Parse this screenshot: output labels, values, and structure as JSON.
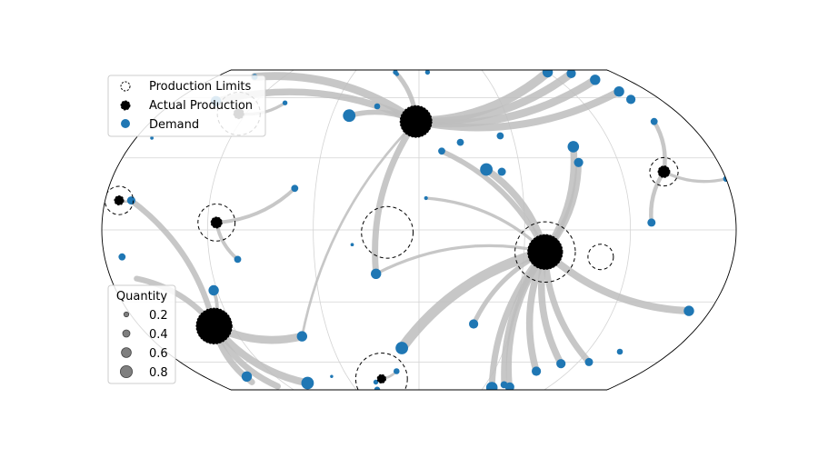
{
  "chart_data": {
    "type": "scatter",
    "title": "",
    "projection": "Equal Earth (global map)",
    "gridlines": true,
    "legend": {
      "placement": "top-left",
      "entries": [
        {
          "label": "Production Limits",
          "marker": "dashed-circle"
        },
        {
          "label": "Actual Production",
          "marker": "filled-black-circle"
        },
        {
          "label": "Demand",
          "marker": "filled-blue-circle"
        }
      ]
    },
    "size_legend": {
      "title": "Quantity",
      "placement": "bottom-left",
      "values": [
        "0.2",
        "0.4",
        "0.6",
        "0.8"
      ]
    },
    "colors": {
      "demand": "#1f77b4",
      "production": "#000000",
      "flow": "#bdbdbd",
      "grid": "#d3d3d3"
    },
    "producers": [
      {
        "id": "P1",
        "lon": -125,
        "lat": 51,
        "limit": 0.55,
        "production": 0.15
      },
      {
        "id": "P2",
        "lon": -172,
        "lat": 12,
        "limit": 0.3,
        "production": 0.12
      },
      {
        "id": "P3",
        "lon": -115,
        "lat": 3,
        "limit": 0.45,
        "production": 0.18
      },
      {
        "id": "P4",
        "lon": -18,
        "lat": -1,
        "limit": 0.7,
        "production": 0.0
      },
      {
        "id": "P5",
        "lon": -2,
        "lat": 47,
        "limit": 0.3,
        "production": 0.85
      },
      {
        "id": "P6",
        "lon": 72,
        "lat": -9,
        "limit": 0.85,
        "production": 0.95
      },
      {
        "id": "P7",
        "lon": 104,
        "lat": -11,
        "limit": 0.25,
        "production": 0.0
      },
      {
        "id": "P8",
        "lon": 145,
        "lat": 24,
        "limit": 0.3,
        "production": 0.2
      },
      {
        "id": "P9",
        "lon": -132,
        "lat": -41,
        "limit": 0.3,
        "production": 0.98
      },
      {
        "id": "P10",
        "lon": -32,
        "lat": -72,
        "limit": 0.7,
        "production": 0.1
      }
    ],
    "demand": [
      {
        "lon": -146,
        "lat": 76,
        "q": 0.15
      },
      {
        "lon": -150,
        "lat": 58,
        "q": 0.35
      },
      {
        "lon": -98,
        "lat": 57,
        "q": 0.1
      },
      {
        "lon": -22,
        "lat": 82,
        "q": 0.1
      },
      {
        "lon": 8,
        "lat": 82,
        "q": 0.1
      },
      {
        "lon": -20,
        "lat": 79,
        "q": 0.05
      },
      {
        "lon": -48,
        "lat": 50,
        "q": 0.45
      },
      {
        "lon": -30,
        "lat": 55,
        "q": 0.15
      },
      {
        "lon": -170,
        "lat": 39,
        "q": 0.03
      },
      {
        "lon": -165,
        "lat": 12,
        "q": 0.25
      },
      {
        "lon": 14,
        "lat": 33,
        "q": 0.2
      },
      {
        "lon": 52,
        "lat": 40,
        "q": 0.2
      },
      {
        "lon": 40,
        "lat": 25,
        "q": 0.45
      },
      {
        "lon": 4,
        "lat": 13,
        "q": 0.05
      },
      {
        "lon": -72,
        "lat": 17,
        "q": 0.2
      },
      {
        "lon": -38,
        "lat": -6,
        "q": 0.03
      },
      {
        "lon": -104,
        "lat": -12,
        "q": 0.2
      },
      {
        "lon": -25,
        "lat": -18,
        "q": 0.35
      },
      {
        "lon": -170,
        "lat": -11,
        "q": 0.2
      },
      {
        "lon": -122,
        "lat": -25,
        "q": 0.35
      },
      {
        "lon": -133,
        "lat": -46,
        "q": 0.3
      },
      {
        "lon": -78,
        "lat": -46,
        "q": 0.35
      },
      {
        "lon": -144,
        "lat": -70,
        "q": 0.35
      },
      {
        "lon": -73,
        "lat": -70,
        "q": 0.02
      },
      {
        "lon": -99,
        "lat": -76,
        "q": 0.45
      },
      {
        "lon": -12,
        "lat": -52,
        "q": 0.45
      },
      {
        "lon": -38,
        "lat": -75,
        "q": 0.1
      },
      {
        "lon": -18,
        "lat": -66,
        "q": 0.15
      },
      {
        "lon": -40,
        "lat": -88,
        "q": 0.15
      },
      {
        "lon": 35,
        "lat": -40,
        "q": 0.3
      },
      {
        "lon": 94,
        "lat": -66,
        "q": 0.3
      },
      {
        "lon": 68,
        "lat": -82,
        "q": 0.4
      },
      {
        "lon": 77,
        "lat": -78,
        "q": 0.2
      },
      {
        "lon": 84,
        "lat": -81,
        "q": 0.3
      },
      {
        "lon": 68,
        "lat": -90,
        "q": 0.15
      },
      {
        "lon": 120,
        "lat": 82,
        "q": 0.35
      },
      {
        "lon": 140,
        "lat": 80,
        "q": 0.3
      },
      {
        "lon": 152,
        "lat": 73,
        "q": 0.35
      },
      {
        "lon": 157,
        "lat": 64,
        "q": 0.35
      },
      {
        "lon": 158,
        "lat": 59,
        "q": 0.3
      },
      {
        "lon": 158,
        "lat": 47,
        "q": 0.2
      },
      {
        "lon": 180,
        "lat": 21,
        "q": 0.15
      },
      {
        "lon": 132,
        "lat": 3,
        "q": 0.25
      },
      {
        "lon": 167,
        "lat": -34,
        "q": 0.35
      },
      {
        "lon": 143,
        "lat": -54,
        "q": 0.15
      },
      {
        "lon": 128,
        "lat": -60,
        "q": 0.25
      },
      {
        "lon": 108,
        "lat": -61,
        "q": 0.3
      },
      {
        "lon": 26,
        "lat": 37,
        "q": 0.2
      },
      {
        "lon": 96,
        "lat": 35,
        "q": 0.4
      },
      {
        "lon": 96,
        "lat": 28,
        "q": 0.3
      },
      {
        "lon": 49,
        "lat": 24,
        "q": 0.25
      }
    ],
    "flows": [
      {
        "from": "P5",
        "to": [
          -146,
          76
        ],
        "q": 0.6
      },
      {
        "from": "P5",
        "to": [
          -150,
          58
        ],
        "q": 0.5
      },
      {
        "from": "P5",
        "to": [
          -22,
          82
        ],
        "q": 0.3
      },
      {
        "from": "P5",
        "to": [
          -48,
          50
        ],
        "q": 0.35
      },
      {
        "from": "P5",
        "to": [
          120,
          82
        ],
        "q": 0.7
      },
      {
        "from": "P5",
        "to": [
          140,
          80
        ],
        "q": 0.6
      },
      {
        "from": "P5",
        "to": [
          152,
          73
        ],
        "q": 0.6
      },
      {
        "from": "P5",
        "to": [
          157,
          64
        ],
        "q": 0.55
      },
      {
        "from": "P5",
        "to": [
          -25,
          -18
        ],
        "q": 0.45
      },
      {
        "from": "P5",
        "to": [
          -78,
          -46
        ],
        "q": 0.1
      },
      {
        "from": "P1",
        "to": [
          -98,
          57
        ],
        "q": 0.15
      },
      {
        "from": "P3",
        "to": [
          -104,
          -12
        ],
        "q": 0.2
      },
      {
        "from": "P3",
        "to": [
          -72,
          17
        ],
        "q": 0.2
      },
      {
        "from": "P6",
        "to": [
          -25,
          -18
        ],
        "q": 0.15
      },
      {
        "from": "P6",
        "to": [
          -12,
          -52
        ],
        "q": 0.8
      },
      {
        "from": "P6",
        "to": [
          4,
          13
        ],
        "q": 0.15
      },
      {
        "from": "P6",
        "to": [
          14,
          33
        ],
        "q": 0.35
      },
      {
        "from": "P6",
        "to": [
          40,
          25
        ],
        "q": 0.5
      },
      {
        "from": "P6",
        "to": [
          35,
          -40
        ],
        "q": 0.3
      },
      {
        "from": "P6",
        "to": [
          96,
          35
        ],
        "q": 0.5
      },
      {
        "from": "P6",
        "to": [
          96,
          28
        ],
        "q": 0.45
      },
      {
        "from": "P6",
        "to": [
          94,
          -66
        ],
        "q": 0.5
      },
      {
        "from": "P6",
        "to": [
          68,
          -82
        ],
        "q": 0.45
      },
      {
        "from": "P6",
        "to": [
          77,
          -78
        ],
        "q": 0.4
      },
      {
        "from": "P6",
        "to": [
          84,
          -81
        ],
        "q": 0.4
      },
      {
        "from": "P6",
        "to": [
          108,
          -61
        ],
        "q": 0.5
      },
      {
        "from": "P6",
        "to": [
          128,
          -60
        ],
        "q": 0.45
      },
      {
        "from": "P9",
        "to": [
          -78,
          -46
        ],
        "q": 0.6
      },
      {
        "from": "P9",
        "to": [
          -99,
          -76
        ],
        "q": 0.55
      },
      {
        "from": "P9",
        "to": [
          -122,
          -25
        ],
        "q": 0.2
      },
      {
        "from": "P9",
        "to": [
          -165,
          12
        ],
        "q": 0.4
      },
      {
        "from": "P9",
        "to": [
          -165,
          -20
        ],
        "q": 0.4
      },
      {
        "from": "P9",
        "to": [
          -147,
          -75
        ],
        "q": 0.45
      },
      {
        "from": "P9",
        "to": [
          -130,
          -80
        ],
        "q": 0.45
      },
      {
        "from": "P8",
        "to": [
          158,
          47
        ],
        "q": 0.25
      },
      {
        "from": "P8",
        "to": [
          132,
          3
        ],
        "q": 0.25
      },
      {
        "from": "P8",
        "to": [
          180,
          21
        ],
        "q": 0.15
      },
      {
        "from": "P2",
        "to": [
          -165,
          12
        ],
        "q": 0.1
      },
      {
        "from": "P10",
        "to": [
          -18,
          -66
        ],
        "q": 0.1
      },
      {
        "from": "P6",
        "to": [
          167,
          -34
        ],
        "q": 0.55
      }
    ]
  }
}
